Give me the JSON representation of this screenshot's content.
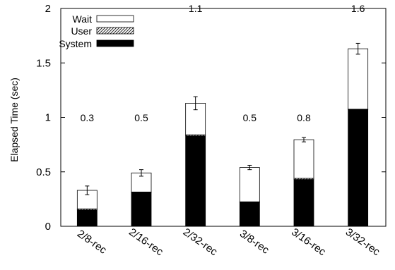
{
  "chart_data": {
    "type": "bar",
    "stacked": true,
    "title": "",
    "xlabel": "",
    "ylabel": "Elapsed Time (sec)",
    "ylim": [
      0,
      2
    ],
    "yticks": [
      "0",
      "0.5",
      "1",
      "1.5",
      "2"
    ],
    "categories": [
      "2/8-rec",
      "2/16-rec",
      "2/32-rec",
      "3/8-rec",
      "3/16-rec",
      "3/32-rec"
    ],
    "series": [
      {
        "name": "System",
        "values": [
          0.15,
          0.31,
          0.83,
          0.22,
          0.43,
          1.07
        ],
        "fill": "#000000"
      },
      {
        "name": "User",
        "values": [
          0.01,
          0.005,
          0.01,
          0.005,
          0.01,
          0.005
        ],
        "fill": "hatch"
      },
      {
        "name": "Wait",
        "values": [
          0.17,
          0.175,
          0.29,
          0.315,
          0.355,
          0.555
        ],
        "fill": "#ffffff"
      }
    ],
    "error_bars": [
      0.04,
      0.03,
      0.06,
      0.02,
      0.02,
      0.05
    ],
    "annotations": [
      "0.3",
      "0.5",
      "1.1",
      "0.5",
      "0.8",
      "1.6"
    ],
    "legend": {
      "position": "top-left",
      "order": [
        "Wait",
        "User",
        "System"
      ]
    },
    "grid": false
  }
}
